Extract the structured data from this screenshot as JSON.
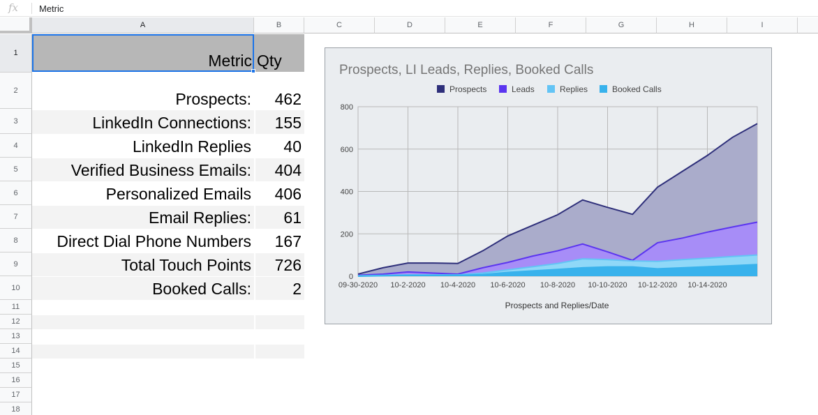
{
  "formula_bar": {
    "fx_label": "fx",
    "value": "Metric"
  },
  "columns": [
    "A",
    "B",
    "C",
    "D",
    "E",
    "F",
    "G",
    "H",
    "I"
  ],
  "rows": [
    "1",
    "2",
    "3",
    "4",
    "5",
    "6",
    "7",
    "8",
    "9",
    "10",
    "11",
    "12",
    "13",
    "14",
    "15",
    "16",
    "17",
    "18"
  ],
  "table": {
    "header": {
      "metric": "Metric",
      "qty": "Qty"
    },
    "rows": [
      {
        "metric": "Prospects:",
        "qty": "462"
      },
      {
        "metric": "LinkedIn Connections:",
        "qty": "155"
      },
      {
        "metric": "LinkedIn Replies",
        "qty": "40"
      },
      {
        "metric": "Verified Business Emails:",
        "qty": "404"
      },
      {
        "metric": "Personalized Emails",
        "qty": "406"
      },
      {
        "metric": "Email Replies:",
        "qty": "61"
      },
      {
        "metric": "Direct Dial Phone Numbers",
        "qty": "167"
      },
      {
        "metric": "Total Touch Points",
        "qty": "726"
      },
      {
        "metric": "Booked Calls:",
        "qty": "2"
      }
    ]
  },
  "chart_data": {
    "type": "area",
    "title": "Prospects, LI Leads, Replies, Booked Calls",
    "xlabel": "Prospects and Replies/Date",
    "ylabel": "",
    "ylim": [
      0,
      800
    ],
    "yticks": [
      0,
      200,
      400,
      600,
      800
    ],
    "grid": true,
    "legend_position": "top",
    "x": [
      "09-30-2020",
      "10-1-2020",
      "10-2-2020",
      "10-3-2020",
      "10-4-2020",
      "10-5-2020",
      "10-6-2020",
      "10-7-2020",
      "10-8-2020",
      "10-9-2020",
      "10-10-2020",
      "10-11-2020",
      "10-12-2020",
      "10-13-2020",
      "10-14-2020",
      "10-15-2020",
      "10-16-2020"
    ],
    "x_tick_labels": [
      "09-30-2020",
      "10-2-2020",
      "10-4-2020",
      "10-6-2020",
      "10-8-2020",
      "10-10-2020",
      "10-12-2020",
      "10-14-2020"
    ],
    "series": [
      {
        "name": "Prospects",
        "color": "#2e2f7a",
        "fill": "#aaaccb",
        "values": [
          10,
          40,
          62,
          62,
          60,
          120,
          190,
          240,
          290,
          360,
          325,
          292,
          420,
          495,
          570,
          655,
          720
        ]
      },
      {
        "name": "Leads",
        "color": "#5b35f0",
        "fill": "#a78df7",
        "values": [
          5,
          10,
          20,
          15,
          10,
          40,
          65,
          95,
          120,
          152,
          115,
          75,
          158,
          180,
          208,
          232,
          255
        ]
      },
      {
        "name": "Replies",
        "color": "#63c4f5",
        "fill": "#8fd8f8",
        "values": [
          2,
          4,
          6,
          6,
          6,
          15,
          30,
          45,
          60,
          82,
          78,
          72,
          70,
          78,
          85,
          93,
          100
        ]
      },
      {
        "name": "Booked Calls",
        "color": "#38b2ec",
        "fill": "#38b2ec",
        "values": [
          0,
          2,
          4,
          4,
          4,
          8,
          18,
          25,
          32,
          40,
          44,
          44,
          35,
          40,
          45,
          50,
          55
        ]
      }
    ]
  }
}
